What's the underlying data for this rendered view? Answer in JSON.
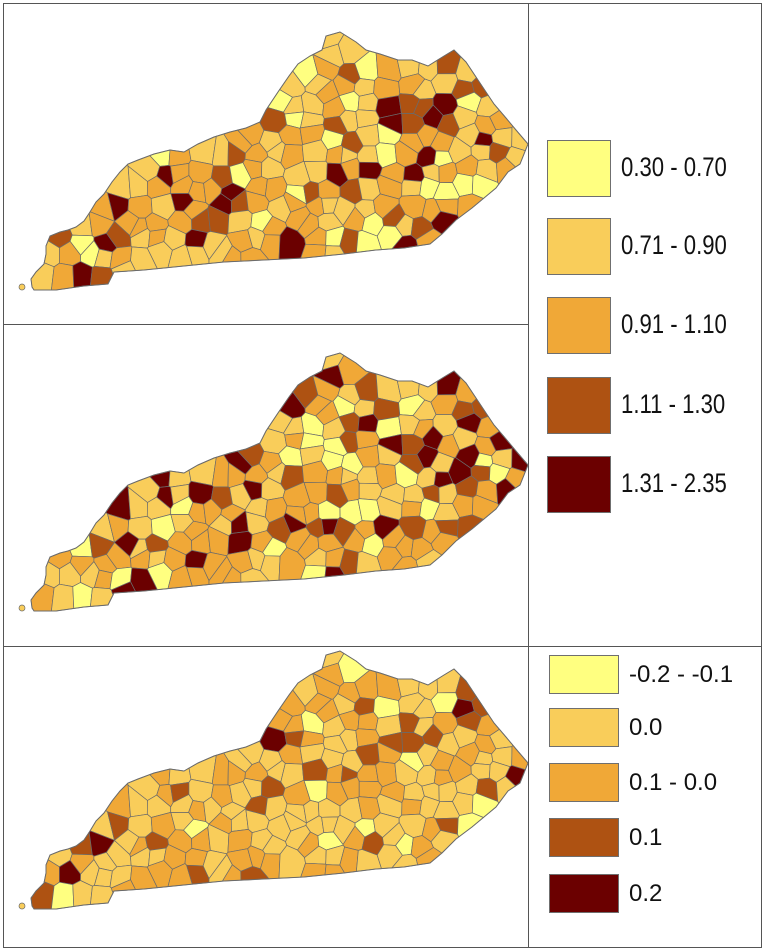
{
  "palette": {
    "class1": "#ffff80",
    "class2": "#f9cd5a",
    "class3": "#f0a837",
    "class4": "#ae5212",
    "class5": "#6b0000",
    "border": "#6b6b6b"
  },
  "legend_top": {
    "items": [
      {
        "label": "0.30 - 0.70",
        "color": "#ffff80"
      },
      {
        "label": "0.71 - 0.90",
        "color": "#f9cd5a"
      },
      {
        "label": "0.91 - 1.10",
        "color": "#f0a837"
      },
      {
        "label": "1.11 - 1.30",
        "color": "#ae5212"
      },
      {
        "label": "1.31 - 2.35",
        "color": "#6b0000"
      }
    ]
  },
  "legend_bottom": {
    "items": [
      {
        "label": "-0.2 - -0.1",
        "color": "#ffff80"
      },
      {
        "label": "0.0",
        "color": "#f9cd5a"
      },
      {
        "label": "0.1 - 0.0",
        "color": "#f0a837"
      },
      {
        "label": "0.1",
        "color": "#ae5212"
      },
      {
        "label": "0.2",
        "color": "#6b0000"
      }
    ]
  },
  "maps": [
    {
      "name": "map-top",
      "seed": 11,
      "weights": [
        0.1,
        0.3,
        0.32,
        0.15,
        0.13
      ]
    },
    {
      "name": "map-middle",
      "seed": 29,
      "weights": [
        0.12,
        0.3,
        0.3,
        0.16,
        0.12
      ]
    },
    {
      "name": "map-bottom",
      "seed": 47,
      "weights": [
        0.06,
        0.44,
        0.36,
        0.12,
        0.02
      ]
    }
  ]
}
